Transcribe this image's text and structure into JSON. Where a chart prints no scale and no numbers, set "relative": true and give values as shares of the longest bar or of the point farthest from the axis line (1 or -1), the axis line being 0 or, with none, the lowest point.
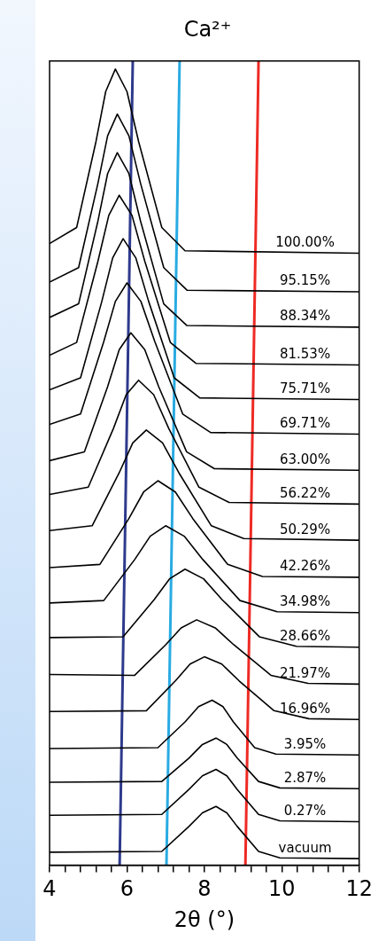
{
  "chart_data": {
    "type": "line",
    "title": "Ca²⁺",
    "xlabel": "2θ (°)",
    "relative": true,
    "xlim": [
      4,
      12
    ],
    "xticks": [
      4,
      {
        "value": 4.4,
        "label": null
      },
      {
        "value": 4.8,
        "label": null
      },
      {
        "value": 5.2,
        "label": null
      },
      {
        "value": 5.6,
        "label": null
      },
      6,
      {
        "value": 6.4,
        "label": null
      },
      {
        "value": 6.8,
        "label": null
      },
      {
        "value": 7.2,
        "label": null
      },
      {
        "value": 7.6,
        "label": null
      },
      8,
      {
        "value": 8.4,
        "label": null
      },
      {
        "value": 8.8,
        "label": null
      },
      {
        "value": 9.2,
        "label": null
      },
      {
        "value": 9.6,
        "label": null
      },
      10,
      {
        "value": 10.4,
        "label": null
      },
      {
        "value": 10.8,
        "label": null
      },
      {
        "value": 11.2,
        "label": null
      },
      {
        "value": 11.6,
        "label": null
      },
      12
    ],
    "grid": false,
    "legend": false,
    "marker": "none",
    "line_style": "solid",
    "series": [
      {
        "name": "100.00%",
        "color": "#000000",
        "x": [
          4,
          4.7,
          5.2,
          5.45,
          5.7,
          6.0,
          6.3,
          6.9,
          7.5,
          12
        ],
        "values": [
          0.773,
          0.793,
          0.9,
          0.962,
          0.99,
          0.962,
          0.9,
          0.793,
          0.764,
          0.761
        ]
      },
      {
        "name": "95.15%",
        "color": "#000000",
        "x": [
          4,
          4.75,
          5.25,
          5.5,
          5.75,
          6.05,
          6.35,
          6.95,
          7.55,
          12
        ],
        "values": [
          0.725,
          0.743,
          0.848,
          0.907,
          0.934,
          0.907,
          0.848,
          0.743,
          0.715,
          0.713
        ]
      },
      {
        "name": "88.34%",
        "color": "#000000",
        "x": [
          4,
          4.75,
          5.25,
          5.5,
          5.75,
          6.05,
          6.35,
          6.95,
          7.55,
          12
        ],
        "values": [
          0.681,
          0.698,
          0.801,
          0.86,
          0.886,
          0.86,
          0.801,
          0.698,
          0.671,
          0.669
        ]
      },
      {
        "name": "81.53%",
        "color": "#000000",
        "x": [
          4,
          4.7,
          5.25,
          5.53,
          5.8,
          6.13,
          6.46,
          7.12,
          7.78,
          12
        ],
        "values": [
          0.634,
          0.65,
          0.751,
          0.808,
          0.833,
          0.808,
          0.751,
          0.65,
          0.624,
          0.622
        ]
      },
      {
        "name": "75.71%",
        "color": "#000000",
        "x": [
          4,
          4.8,
          5.35,
          5.63,
          5.9,
          6.23,
          6.56,
          7.22,
          7.88,
          12
        ],
        "values": [
          0.591,
          0.606,
          0.701,
          0.755,
          0.779,
          0.755,
          0.701,
          0.606,
          0.581,
          0.579
        ]
      },
      {
        "name": "69.71%",
        "color": "#000000",
        "x": [
          4,
          4.8,
          5.4,
          5.7,
          6.0,
          6.36,
          6.72,
          7.44,
          8.16,
          12
        ],
        "values": [
          0.548,
          0.561,
          0.651,
          0.701,
          0.724,
          0.701,
          0.651,
          0.561,
          0.538,
          0.536
        ]
      },
      {
        "name": "63.00%",
        "color": "#000000",
        "x": [
          4,
          4.9,
          5.5,
          5.8,
          6.1,
          6.46,
          6.82,
          7.54,
          8.26,
          12
        ],
        "values": [
          0.503,
          0.514,
          0.595,
          0.641,
          0.662,
          0.641,
          0.595,
          0.514,
          0.493,
          0.491
        ]
      },
      {
        "name": "56.22%",
        "color": "#000000",
        "x": [
          4,
          5.0,
          5.65,
          5.98,
          6.3,
          6.69,
          7.08,
          7.86,
          8.64,
          12
        ],
        "values": [
          0.461,
          0.47,
          0.543,
          0.585,
          0.603,
          0.585,
          0.543,
          0.47,
          0.451,
          0.449
        ]
      },
      {
        "name": "50.29%",
        "color": "#000000",
        "x": [
          4,
          5.1,
          5.8,
          6.15,
          6.5,
          6.92,
          7.34,
          8.18,
          9.02,
          12
        ],
        "values": [
          0.416,
          0.422,
          0.488,
          0.525,
          0.541,
          0.525,
          0.488,
          0.422,
          0.406,
          0.404
        ]
      },
      {
        "name": "42.26%",
        "color": "#000000",
        "x": [
          4,
          5.3,
          6.05,
          6.43,
          6.8,
          7.25,
          7.7,
          8.6,
          9.5,
          12
        ],
        "values": [
          0.37,
          0.374,
          0.431,
          0.464,
          0.478,
          0.464,
          0.431,
          0.374,
          0.359,
          0.358
        ]
      },
      {
        "name": "34.98%",
        "color": "#000000",
        "x": [
          4,
          5.4,
          6.2,
          6.6,
          7.0,
          7.48,
          7.96,
          8.92,
          9.88,
          12
        ],
        "values": [
          0.326,
          0.329,
          0.38,
          0.409,
          0.422,
          0.409,
          0.38,
          0.329,
          0.315,
          0.314
        ]
      },
      {
        "name": "28.66%",
        "color": "#000000",
        "x": [
          4,
          5.9,
          6.7,
          7.1,
          7.5,
          7.98,
          8.46,
          9.42,
          10.38,
          12
        ],
        "values": [
          0.283,
          0.284,
          0.33,
          0.356,
          0.368,
          0.356,
          0.33,
          0.284,
          0.272,
          0.271
        ]
      },
      {
        "name": "21.97%",
        "color": "#000000",
        "x": [
          4,
          6.2,
          7.0,
          7.4,
          7.8,
          8.28,
          8.76,
          9.72,
          10.68,
          12
        ],
        "values": [
          0.237,
          0.236,
          0.274,
          0.295,
          0.305,
          0.295,
          0.274,
          0.236,
          0.226,
          0.225
        ]
      },
      {
        "name": "16.96%",
        "color": "#000000",
        "x": [
          4,
          6.5,
          7.25,
          7.63,
          8.0,
          8.45,
          8.9,
          9.8,
          10.7,
          12
        ],
        "values": [
          0.191,
          0.192,
          0.229,
          0.25,
          0.259,
          0.25,
          0.229,
          0.192,
          0.182,
          0.181
        ]
      },
      {
        "name": "3.95%",
        "color": "#000000",
        "x": [
          4,
          6.8,
          7.5,
          7.85,
          8.2,
          8.48,
          8.75,
          9.3,
          9.85,
          12
        ],
        "values": [
          0.145,
          0.146,
          0.178,
          0.197,
          0.205,
          0.197,
          0.178,
          0.146,
          0.138,
          0.137
        ]
      },
      {
        "name": "2.87%",
        "color": "#000000",
        "x": [
          4,
          6.9,
          7.6,
          7.95,
          8.3,
          8.58,
          8.85,
          9.4,
          9.95,
          12
        ],
        "values": [
          0.103,
          0.104,
          0.133,
          0.15,
          0.158,
          0.15,
          0.133,
          0.104,
          0.096,
          0.095
        ]
      },
      {
        "name": "0.27%",
        "color": "#000000",
        "x": [
          4,
          6.9,
          7.6,
          7.95,
          8.3,
          8.58,
          8.85,
          9.4,
          9.95,
          12
        ],
        "values": [
          0.062,
          0.063,
          0.094,
          0.111,
          0.119,
          0.111,
          0.094,
          0.063,
          0.055,
          0.054
        ]
      },
      {
        "name": "vacuum",
        "color": "#000000",
        "x": [
          4,
          6.9,
          7.6,
          7.95,
          8.3,
          8.58,
          8.85,
          9.4,
          9.95,
          12
        ],
        "values": [
          0.016,
          0.017,
          0.048,
          0.065,
          0.073,
          0.065,
          0.048,
          0.017,
          0.009,
          0.008
        ]
      },
      {
        "color": "#2e3a8c",
        "x": [
          5.81,
          6.15
        ],
        "values": [
          0,
          1
        ]
      },
      {
        "color": "#29abe2",
        "x": [
          7.02,
          7.36
        ],
        "values": [
          0,
          1
        ]
      },
      {
        "color": "#ee2a24",
        "x": [
          9.06,
          9.4
        ],
        "values": [
          0,
          1
        ]
      }
    ]
  }
}
